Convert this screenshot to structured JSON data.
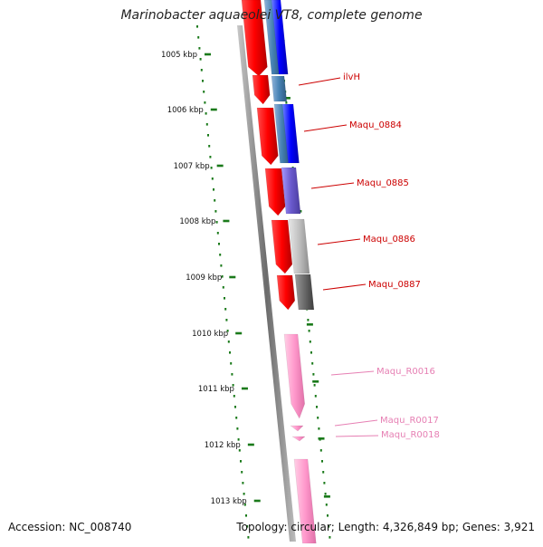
{
  "title": "Marinobacter aquaeolei VT8, complete genome",
  "footer": {
    "accession": "Accession: NC_008740",
    "summary": "Topology: circular; Length: 4,326,849 bp; Genes: 3,921"
  },
  "colors": {
    "ruler_tick": "#1a7a1a",
    "backbone": "#6b6b6b",
    "forward_cds": "#ff0000",
    "gene_label": "#cc0000",
    "rna": "#ff99cc",
    "rna_label": "#e67fb3"
  },
  "ruler": {
    "unit": "kbp",
    "labels": [
      "1005 kbp",
      "1006 kbp",
      "1007 kbp",
      "1008 kbp",
      "1009 kbp",
      "1010 kbp",
      "1011 kbp",
      "1012 kbp",
      "1013 kbp"
    ]
  },
  "features": [
    {
      "label": "ilvH",
      "type": "gene"
    },
    {
      "label": "Maqu_0884",
      "type": "gene"
    },
    {
      "label": "Maqu_0885",
      "type": "gene"
    },
    {
      "label": "Maqu_0886",
      "type": "gene"
    },
    {
      "label": "Maqu_0887",
      "type": "gene"
    },
    {
      "label": "Maqu_R0016",
      "type": "rna"
    },
    {
      "label": "Maqu_R0017",
      "type": "rna"
    },
    {
      "label": "Maqu_R0018",
      "type": "rna"
    }
  ]
}
